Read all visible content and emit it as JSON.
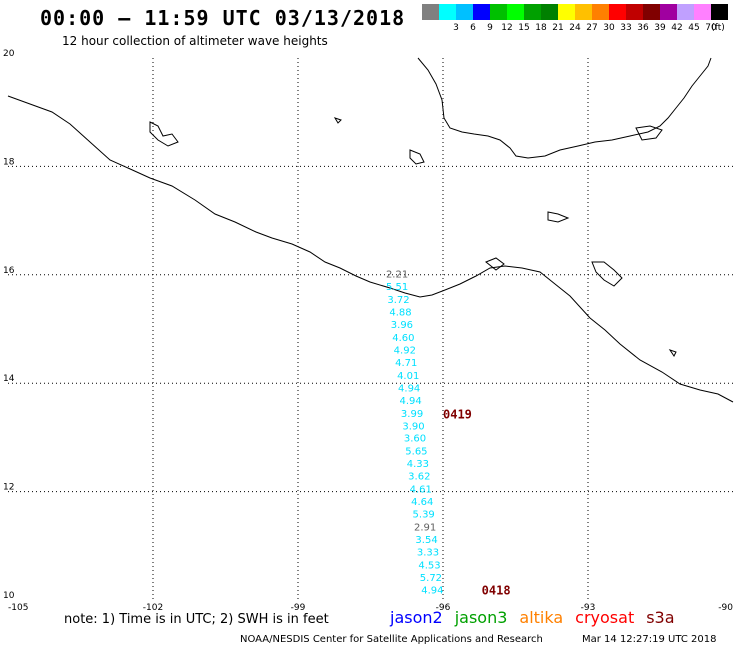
{
  "header": {
    "title": "00:00 – 11:59 UTC 03/13/2018",
    "subtitle": "12 hour collection of altimeter wave heights"
  },
  "colorbar": {
    "unit": "(ft)",
    "levels": [
      "",
      "3",
      "6",
      "9",
      "12",
      "15",
      "18",
      "21",
      "24",
      "27",
      "30",
      "33",
      "36",
      "39",
      "42",
      "45",
      "70"
    ],
    "colors": [
      "#808080",
      "#00ffff",
      "#00c0ff",
      "#0000ff",
      "#00c000",
      "#00ff00",
      "#00a000",
      "#008000",
      "#ffff00",
      "#ffc000",
      "#ff8000",
      "#ff0000",
      "#c00000",
      "#800000",
      "#a000a0",
      "#c0a0ff",
      "#ff80ff",
      "#000000"
    ]
  },
  "map": {
    "lon_range": [
      -105,
      -90
    ],
    "lat_range": [
      10,
      20
    ],
    "lon_ticks": [
      "-105",
      "-102",
      "-99",
      "-96",
      "-93",
      "-90"
    ],
    "lat_ticks": [
      "10",
      "12",
      "14",
      "16",
      "18",
      "20"
    ],
    "swh_color": "#00e0ff",
    "gray_color": "#606060",
    "observations": [
      {
        "lat": 15.95,
        "lon": -96.95,
        "label": "2.21",
        "gray": true
      },
      {
        "lat": 15.72,
        "lon": -96.95,
        "label": "5.51"
      },
      {
        "lat": 15.48,
        "lon": -96.92,
        "label": "3.72"
      },
      {
        "lat": 15.25,
        "lon": -96.88,
        "label": "4.88"
      },
      {
        "lat": 15.02,
        "lon": -96.85,
        "label": "3.96"
      },
      {
        "lat": 14.78,
        "lon": -96.82,
        "label": "4.60"
      },
      {
        "lat": 14.55,
        "lon": -96.79,
        "label": "4.92"
      },
      {
        "lat": 14.32,
        "lon": -96.76,
        "label": "4.71"
      },
      {
        "lat": 14.08,
        "lon": -96.72,
        "label": "4.01"
      },
      {
        "lat": 13.85,
        "lon": -96.7,
        "label": "4.94"
      },
      {
        "lat": 13.62,
        "lon": -96.67,
        "label": "4.94"
      },
      {
        "lat": 13.38,
        "lon": -96.64,
        "label": "3.99"
      },
      {
        "lat": 13.15,
        "lon": -96.61,
        "label": "3.90"
      },
      {
        "lat": 12.92,
        "lon": -96.58,
        "label": "3.60"
      },
      {
        "lat": 12.68,
        "lon": -96.55,
        "label": "5.65"
      },
      {
        "lat": 12.45,
        "lon": -96.52,
        "label": "4.33"
      },
      {
        "lat": 12.22,
        "lon": -96.49,
        "label": "3.62"
      },
      {
        "lat": 11.98,
        "lon": -96.46,
        "label": "4.61"
      },
      {
        "lat": 11.75,
        "lon": -96.43,
        "label": "4.64"
      },
      {
        "lat": 11.52,
        "lon": -96.4,
        "label": "5.39"
      },
      {
        "lat": 11.28,
        "lon": -96.37,
        "label": "2.91",
        "gray": true
      },
      {
        "lat": 11.05,
        "lon": -96.34,
        "label": "3.54"
      },
      {
        "lat": 10.82,
        "lon": -96.31,
        "label": "3.33"
      },
      {
        "lat": 10.58,
        "lon": -96.28,
        "label": "4.53"
      },
      {
        "lat": 10.35,
        "lon": -96.25,
        "label": "5.72"
      },
      {
        "lat": 10.12,
        "lon": -96.22,
        "label": "4.94"
      }
    ],
    "passes": [
      {
        "label": "0419",
        "lat": 13.35,
        "lon": -96.0
      },
      {
        "label": "0418",
        "lat": 10.1,
        "lon": -95.2
      }
    ]
  },
  "footer": {
    "note": "note: 1) Time is in UTC; 2) SWH is in feet",
    "credit": "NOAA/NESDIS Center for Satellite Applications and Research",
    "timestamp": "Mar 14 12:27:19 UTC 2018",
    "satellites": [
      {
        "name": "jason2",
        "color": "#0000ff"
      },
      {
        "name": "jason3",
        "color": "#00a000"
      },
      {
        "name": "altika",
        "color": "#ff8000"
      },
      {
        "name": "cryosat",
        "color": "#ff0000"
      },
      {
        "name": "s3a",
        "color": "#800000"
      }
    ]
  }
}
